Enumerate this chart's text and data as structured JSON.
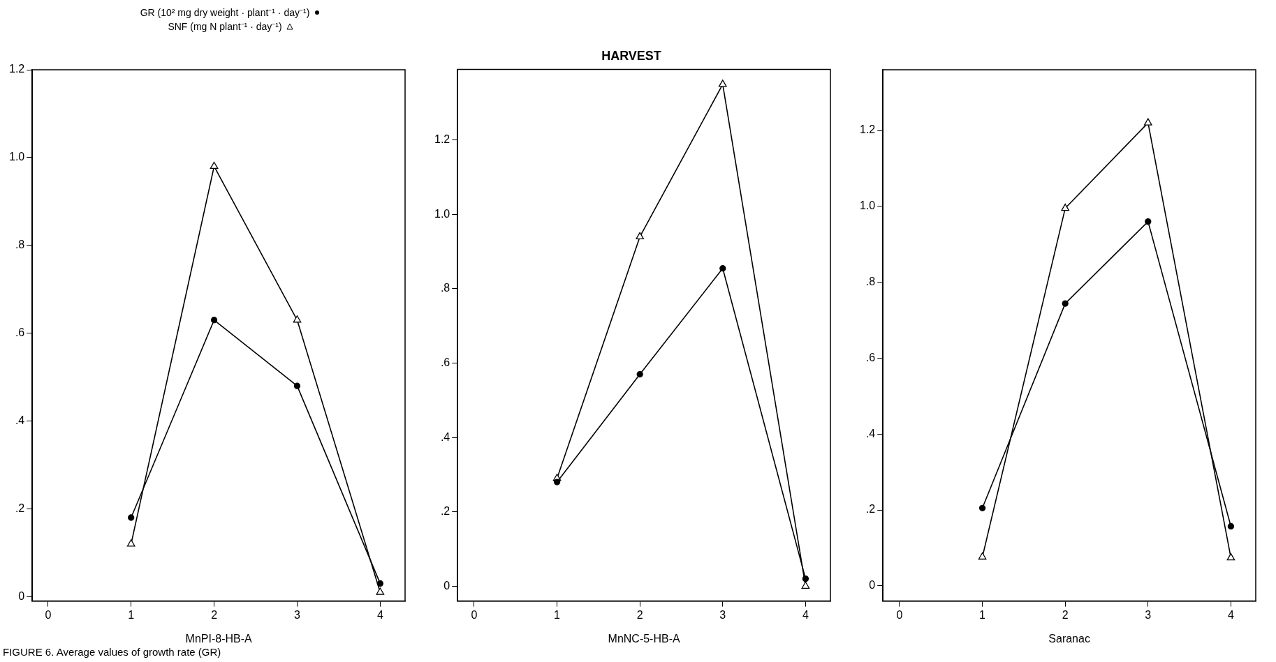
{
  "chart_data": [
    {
      "type": "line",
      "xlabel": "MnPI-8-HB-A",
      "x": [
        1,
        2,
        3,
        4
      ],
      "xlim": [
        -0.19,
        4.3
      ],
      "xticks": [
        0,
        1,
        2,
        3,
        4
      ],
      "ylim": [
        -0.01,
        1.2
      ],
      "yticks": [
        {
          "value": 0,
          "label": "0"
        },
        {
          "value": 0.2,
          "label": ".2"
        },
        {
          "value": 0.4,
          "label": ".4"
        },
        {
          "value": 0.6,
          "label": ".6"
        },
        {
          "value": 0.8,
          "label": ".8"
        },
        {
          "value": 1.0,
          "label": "1.0"
        },
        {
          "value": 1.2,
          "label": "1.2"
        }
      ],
      "legend": "top",
      "annotations": [
        "FIGURE 6. Average values of growth rate (GR)"
      ],
      "series": [
        {
          "name": "GR (10² mg dry weight · plant⁻¹ · day⁻¹)",
          "color": "#000000",
          "marker": "circle",
          "values": [
            0.18,
            0.63,
            0.48,
            0.03
          ]
        },
        {
          "name": "SNF (mg N plant⁻¹ · day⁻¹)",
          "color": "#000000",
          "marker": "triangle",
          "values": [
            0.12,
            0.98,
            0.63,
            0.01
          ]
        }
      ]
    },
    {
      "type": "line",
      "title": "HARVEST",
      "xlabel": "MnNC-5-HB-A",
      "x": [
        1,
        2,
        3,
        4
      ],
      "xlim": [
        -0.2,
        4.3
      ],
      "xticks": [
        0,
        1,
        2,
        3,
        4
      ],
      "ylim": [
        -0.04,
        1.39
      ],
      "yticks": [
        {
          "value": 0,
          "label": "0"
        },
        {
          "value": 0.2,
          "label": ".2"
        },
        {
          "value": 0.4,
          "label": ".4"
        },
        {
          "value": 0.6,
          "label": ".6"
        },
        {
          "value": 0.8,
          "label": ".8"
        },
        {
          "value": 1.0,
          "label": "1.0"
        },
        {
          "value": 1.2,
          "label": "1.2"
        }
      ],
      "series": [
        {
          "color": "#000000",
          "marker": "circle",
          "values": [
            0.28,
            0.57,
            0.855,
            0.02
          ]
        },
        {
          "color": "#000000",
          "marker": "triangle",
          "values": [
            0.29,
            0.94,
            1.35,
            0
          ]
        }
      ]
    },
    {
      "type": "line",
      "xlabel": "Saranac",
      "x": [
        1,
        2,
        3,
        4
      ],
      "xlim": [
        -0.2,
        4.3
      ],
      "xticks": [
        0,
        1,
        2,
        3,
        4
      ],
      "ylim": [
        -0.04,
        1.36
      ],
      "yticks": [
        {
          "value": 0,
          "label": "0"
        },
        {
          "value": 0.2,
          "label": ".2"
        },
        {
          "value": 0.4,
          "label": ".4"
        },
        {
          "value": 0.6,
          "label": ".6"
        },
        {
          "value": 0.8,
          "label": ".8"
        },
        {
          "value": 1.0,
          "label": "1.0"
        },
        {
          "value": 1.2,
          "label": "1.2"
        }
      ],
      "series": [
        {
          "color": "#000000",
          "marker": "circle",
          "values": [
            0.205,
            0.744,
            0.96,
            0.157
          ]
        },
        {
          "color": "#000000",
          "marker": "triangle",
          "values": [
            0.076,
            0.995,
            1.22,
            0.074
          ]
        }
      ]
    }
  ]
}
